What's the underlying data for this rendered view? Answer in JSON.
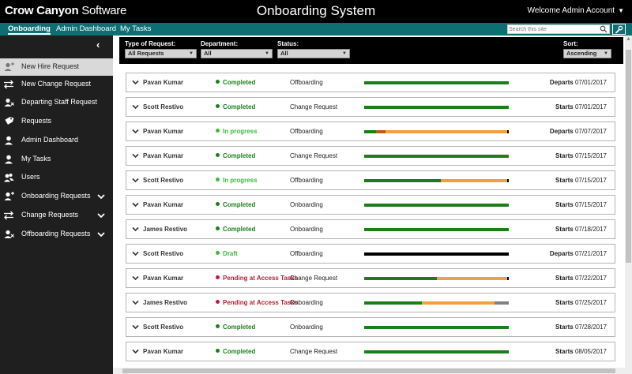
{
  "header": {
    "brand_bold": "Crow Canyon",
    "brand_rest": " Software",
    "title": "Onboarding System",
    "welcome": "Welcome Admin Account"
  },
  "nav": {
    "items": [
      {
        "label": "Onboarding",
        "active": true
      },
      {
        "label": "Admin Dashboard",
        "active": false
      },
      {
        "label": "My Tasks",
        "active": false
      }
    ],
    "search_placeholder": "Search this site"
  },
  "sidebar": {
    "items": [
      {
        "label": "New Hire Request",
        "icon": "add-user-icon",
        "active": true,
        "expandable": false
      },
      {
        "label": "New Change Request",
        "icon": "swap-arrows-icon",
        "active": false,
        "expandable": false
      },
      {
        "label": "Departing Staff Request",
        "icon": "remove-user-icon",
        "active": false,
        "expandable": false
      },
      {
        "label": "Requests",
        "icon": "tag-icon",
        "active": false,
        "expandable": false
      },
      {
        "label": "Admin Dashboard",
        "icon": "user-icon",
        "active": false,
        "expandable": false
      },
      {
        "label": "My Tasks",
        "icon": "user-icon",
        "active": false,
        "expandable": false
      },
      {
        "label": "Users",
        "icon": "users-icon",
        "active": false,
        "expandable": false
      },
      {
        "label": "Onboarding Requests",
        "icon": "add-user-icon",
        "active": false,
        "expandable": true
      },
      {
        "label": "Change Requests",
        "icon": "swap-arrows-icon",
        "active": false,
        "expandable": true
      },
      {
        "label": "Offboarding Requests",
        "icon": "remove-user-icon",
        "active": false,
        "expandable": true
      }
    ]
  },
  "filters": {
    "type_label": "Type of Request:",
    "type_value": "All Requests",
    "dept_label": "Department:",
    "dept_value": "All",
    "status_label": "Status:",
    "status_value": "All",
    "sort_label": "Sort:",
    "sort_value": "Ascending"
  },
  "colors": {
    "teal": "#0e6f73",
    "green": "#1a7f1a",
    "light_green": "#3cb83c",
    "red": "#b22234",
    "orange": "#f0a040",
    "dark_orange": "#b85c1a",
    "gray": "#808080",
    "black": "#000000"
  },
  "rows": [
    {
      "name": "Pavan Kumar",
      "status": "Completed",
      "status_kind": "completed",
      "type": "Offboarding",
      "date_label": "Departs",
      "date": "07/01/2017",
      "progress": [
        {
          "pct": 100,
          "color": "green"
        }
      ]
    },
    {
      "name": "Scott Restivo",
      "status": "Completed",
      "status_kind": "completed",
      "type": "Change Request",
      "date_label": "Starts",
      "date": "07/01/2017",
      "progress": [
        {
          "pct": 100,
          "color": "green"
        }
      ]
    },
    {
      "name": "Pavan Kumar",
      "status": "In progress",
      "status_kind": "inprogress",
      "type": "Offboarding",
      "date_label": "Departs",
      "date": "07/07/2017",
      "progress": [
        {
          "pct": 8,
          "color": "green"
        },
        {
          "pct": 7,
          "color": "dark_orange"
        },
        {
          "pct": 84,
          "color": "orange"
        },
        {
          "pct": 1,
          "color": "black"
        }
      ]
    },
    {
      "name": "Pavan Kumar",
      "status": "Completed",
      "status_kind": "completed",
      "type": "Change Request",
      "date_label": "Starts",
      "date": "07/15/2017",
      "progress": [
        {
          "pct": 100,
          "color": "green"
        }
      ]
    },
    {
      "name": "Scott Restivo",
      "status": "In progress",
      "status_kind": "inprogress",
      "type": "Offboarding",
      "date_label": "Starts",
      "date": "07/15/2017",
      "progress": [
        {
          "pct": 53,
          "color": "green"
        },
        {
          "pct": 46,
          "color": "orange"
        },
        {
          "pct": 1,
          "color": "black"
        }
      ]
    },
    {
      "name": "Pavan Kumar",
      "status": "Completed",
      "status_kind": "completed",
      "type": "Onboarding",
      "date_label": "Starts",
      "date": "07/15/2017",
      "progress": [
        {
          "pct": 100,
          "color": "green"
        }
      ]
    },
    {
      "name": "James Restivo",
      "status": "Completed",
      "status_kind": "completed",
      "type": "Onboarding",
      "date_label": "Starts",
      "date": "07/18/2017",
      "progress": [
        {
          "pct": 100,
          "color": "green"
        }
      ]
    },
    {
      "name": "Scott Restivo",
      "status": "Draft",
      "status_kind": "draft",
      "type": "Offboarding",
      "date_label": "Departs",
      "date": "07/21/2017",
      "progress": [
        {
          "pct": 100,
          "color": "black"
        }
      ]
    },
    {
      "name": "Pavan Kumar",
      "status": "Pending at Access Tasks",
      "status_kind": "pending",
      "type": "Change Request",
      "date_label": "Starts",
      "date": "07/22/2017",
      "progress": [
        {
          "pct": 50,
          "color": "green"
        },
        {
          "pct": 49,
          "color": "orange"
        },
        {
          "pct": 1,
          "color": "black"
        }
      ]
    },
    {
      "name": "James Restivo",
      "status": "Pending at Access Tasks",
      "status_kind": "pending",
      "type": "Onboarding",
      "date_label": "Starts",
      "date": "07/25/2017",
      "progress": [
        {
          "pct": 40,
          "color": "green"
        },
        {
          "pct": 50,
          "color": "orange"
        },
        {
          "pct": 10,
          "color": "gray"
        }
      ]
    },
    {
      "name": "Scott Restivo",
      "status": "Completed",
      "status_kind": "completed",
      "type": "Onboarding",
      "date_label": "Starts",
      "date": "07/28/2017",
      "progress": [
        {
          "pct": 100,
          "color": "green"
        }
      ]
    },
    {
      "name": "Pavan Kumar",
      "status": "Completed",
      "status_kind": "completed",
      "type": "Change Request",
      "date_label": "Starts",
      "date": "08/05/2017",
      "progress": [
        {
          "pct": 100,
          "color": "green"
        }
      ]
    }
  ]
}
